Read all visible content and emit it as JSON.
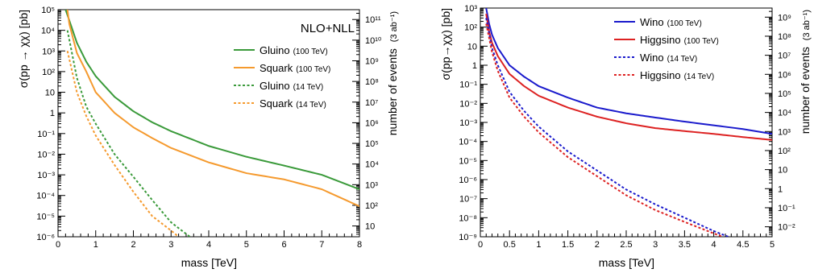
{
  "chart_data": [
    {
      "type": "line",
      "ylabel": "σ(pp → χχ) [pb]",
      "y2label": "number of events",
      "y2label_units": "(3 ab⁻¹)",
      "xlabel": "mass [TeV]",
      "annotation": "NLO+NLL",
      "xlim": [
        0,
        8
      ],
      "ylim": [
        1e-06,
        100000.0
      ],
      "yscale": "log",
      "y2lim": [
        3,
        300000000000.0
      ],
      "y2scale": "log",
      "x_ticks": [
        "0",
        "1",
        "2",
        "3",
        "4",
        "5",
        "6",
        "7",
        "8"
      ],
      "y_ticks": [
        "10⁻⁶",
        "10⁻⁵",
        "10⁻⁴",
        "10⁻³",
        "10⁻²",
        "10⁻¹",
        "1",
        "10",
        "10²",
        "10³",
        "10⁴",
        "10⁵"
      ],
      "y2_ticks": [
        "10",
        "10²",
        "10³",
        "10⁴",
        "10⁵",
        "10⁶",
        "10⁷",
        "10⁸",
        "10⁹",
        "10¹⁰",
        "10¹¹"
      ],
      "legend_position": "top-right",
      "series": [
        {
          "name": "Gluino",
          "suffix": "(100 TeV)",
          "color": "#3a9a3a",
          "style": "solid",
          "x": [
            0.2,
            0.3,
            0.5,
            0.75,
            1.0,
            1.5,
            2.0,
            2.5,
            3.0,
            4.0,
            5.0,
            6.0,
            7.0,
            8.0
          ],
          "y": [
            100000,
            30000,
            2500,
            300,
            60,
            6,
            1.2,
            0.35,
            0.13,
            0.025,
            0.0075,
            0.0028,
            0.001,
            0.0002
          ]
        },
        {
          "name": "Squark",
          "suffix": "(100 TeV)",
          "color": "#f59a2e",
          "style": "solid",
          "x": [
            0.25,
            0.3,
            0.5,
            0.75,
            1.0,
            1.5,
            2.0,
            2.5,
            3.0,
            4.0,
            5.0,
            6.0,
            7.0,
            8.0
          ],
          "y": [
            100000,
            20000,
            800,
            100,
            10,
            1,
            0.2,
            0.06,
            0.02,
            0.004,
            0.0012,
            0.0006,
            0.0002,
            3e-05
          ]
        },
        {
          "name": "Gluino",
          "suffix": "(14 TeV)",
          "color": "#3a9a3a",
          "style": "dashed",
          "x": [
            0.25,
            0.5,
            0.75,
            1.0,
            1.5,
            2.0,
            2.5,
            3.0,
            3.5
          ],
          "y": [
            10000,
            50,
            2,
            0.3,
            0.01,
            0.0008,
            6e-05,
            5e-06,
            1e-06
          ]
        },
        {
          "name": "Squark",
          "suffix": "(14 TeV)",
          "color": "#f59a2e",
          "style": "dashed",
          "x": [
            0.25,
            0.5,
            0.75,
            1.0,
            1.5,
            2.0,
            2.5,
            3.0,
            3.2
          ],
          "y": [
            1000,
            10,
            0.7,
            0.08,
            0.003,
            0.00015,
            1e-05,
            2e-06,
            1e-06
          ]
        }
      ]
    },
    {
      "type": "line",
      "ylabel": "σ(pp→χχ) [pb]",
      "y2label": "number of events",
      "y2label_units": "(3 ab⁻¹)",
      "xlabel": "mass [TeV]",
      "xlim": [
        0,
        5
      ],
      "ylim": [
        1e-09,
        1000.0
      ],
      "yscale": "log",
      "y2lim": [
        0.003,
        3000000000.0
      ],
      "y2scale": "log",
      "x_ticks": [
        "0",
        "0.5",
        "1",
        "1.5",
        "2",
        "2.5",
        "3",
        "3.5",
        "4",
        "4.5",
        "5"
      ],
      "y_ticks": [
        "10⁻⁹",
        "10⁻⁸",
        "10⁻⁷",
        "10⁻⁶",
        "10⁻⁵",
        "10⁻⁴",
        "10⁻³",
        "10⁻²",
        "10⁻¹",
        "1",
        "10",
        "10²",
        "10³"
      ],
      "y2_ticks": [
        "10⁻²",
        "10⁻¹",
        "1",
        "10",
        "10²",
        "10³",
        "10⁴",
        "10⁵",
        "10⁶",
        "10⁷",
        "10⁸",
        "10⁹"
      ],
      "legend_position": "top-right",
      "series": [
        {
          "name": "Wino",
          "suffix": "(100 TeV)",
          "color": "#1a1acc",
          "style": "solid",
          "x": [
            0.1,
            0.15,
            0.2,
            0.3,
            0.5,
            0.75,
            1.0,
            1.5,
            2.0,
            2.5,
            3.0,
            3.5,
            4.0,
            4.5,
            5.0
          ],
          "y": [
            1000,
            150,
            40,
            8,
            1,
            0.25,
            0.08,
            0.02,
            0.006,
            0.003,
            0.0018,
            0.0011,
            0.0007,
            0.00045,
            0.00025
          ]
        },
        {
          "name": "Higgsino",
          "suffix": "(100 TeV)",
          "color": "#dd2222",
          "style": "solid",
          "x": [
            0.1,
            0.15,
            0.2,
            0.3,
            0.5,
            0.75,
            1.0,
            1.5,
            2.0,
            2.5,
            3.0,
            3.5,
            4.0,
            4.5,
            5.0
          ],
          "y": [
            500,
            60,
            15,
            3,
            0.35,
            0.08,
            0.025,
            0.006,
            0.002,
            0.0009,
            0.0005,
            0.00035,
            0.00025,
            0.00017,
            0.00012
          ]
        },
        {
          "name": "Wino",
          "suffix": "(14 TeV)",
          "color": "#1a1acc",
          "style": "dashed",
          "x": [
            0.1,
            0.2,
            0.3,
            0.5,
            0.75,
            1.0,
            1.5,
            2.0,
            2.5,
            3.0,
            3.5,
            4.0,
            4.25
          ],
          "y": [
            300,
            8,
            1,
            0.04,
            0.004,
            0.0006,
            3e-05,
            3e-06,
            3e-07,
            5e-08,
            1e-08,
            2e-09,
            1e-09
          ]
        },
        {
          "name": "Higgsino",
          "suffix": "(14 TeV)",
          "color": "#dd2222",
          "style": "dashed",
          "x": [
            0.1,
            0.2,
            0.3,
            0.5,
            0.75,
            1.0,
            1.5,
            2.0,
            2.5,
            3.0,
            3.5,
            4.0,
            4.15
          ],
          "y": [
            150,
            5,
            0.5,
            0.02,
            0.002,
            0.0003,
            1.5e-05,
            1.5e-06,
            1.5e-07,
            2.5e-08,
            6e-09,
            1.5e-09,
            1e-09
          ]
        }
      ]
    }
  ]
}
